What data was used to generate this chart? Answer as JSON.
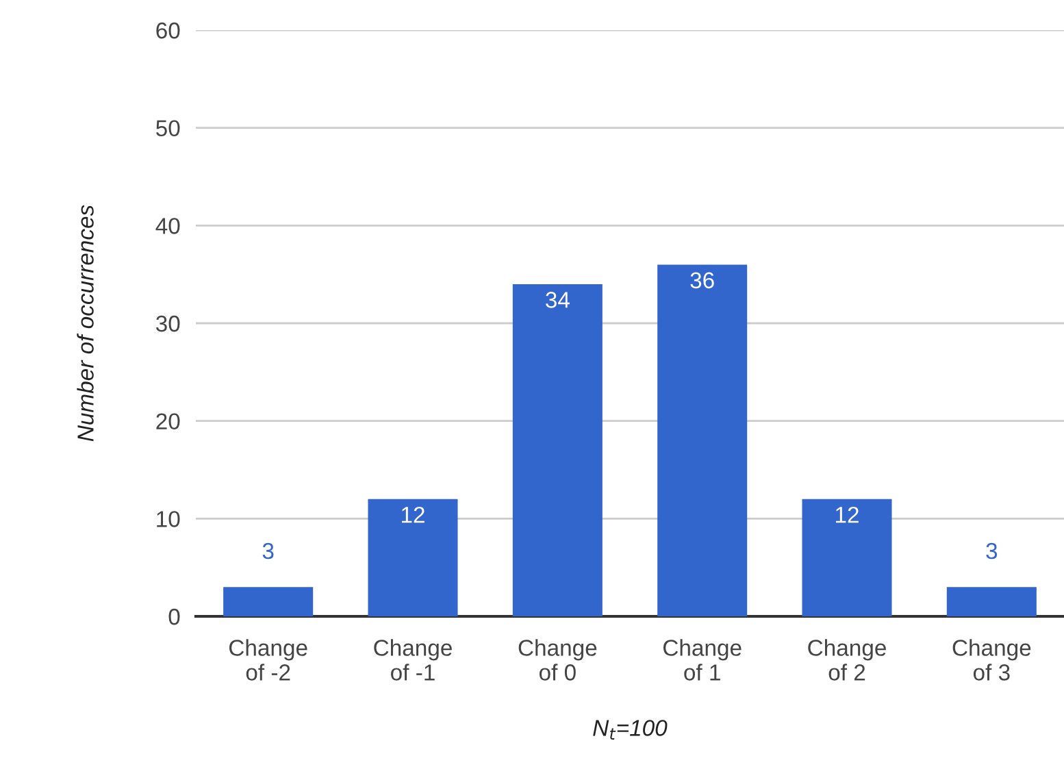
{
  "chart_data": {
    "type": "bar",
    "xlabel": "N$_{t}$=100",
    "ylabel": "Number of occurrences",
    "categories": [
      "Change\nof -2",
      "Change\nof -1",
      "Change\nof 0",
      "Change\nof 1",
      "Change\nof 2",
      "Change\nof 3"
    ],
    "values": [
      3,
      12,
      34,
      36,
      12,
      3
    ],
    "color": "#3366cc",
    "ylim": [
      0,
      60
    ],
    "yticks": [
      0,
      10,
      20,
      30,
      40,
      50,
      60
    ],
    "grid": "y",
    "data_labels": true
  }
}
